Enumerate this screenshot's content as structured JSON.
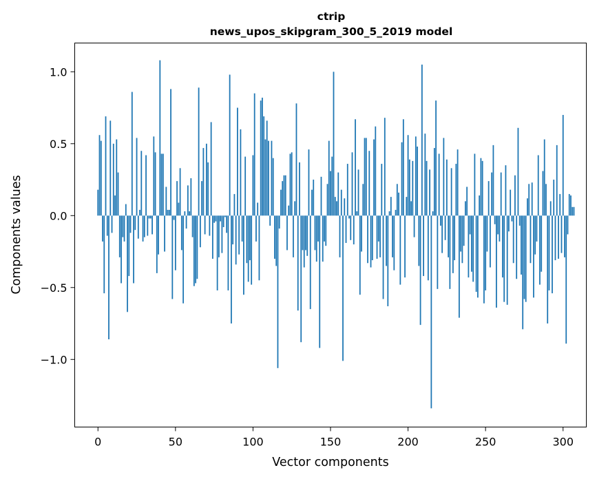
{
  "chart_data": {
    "type": "bar",
    "title": "ctrip",
    "subtitle": "news_upos_skipgram_300_5_2019 model",
    "xlabel": "Vector components",
    "ylabel": "Components values",
    "xlim": [
      -15,
      315
    ],
    "ylim": [
      -1.47,
      1.2
    ],
    "xticks": [
      0,
      50,
      100,
      150,
      200,
      250,
      300
    ],
    "xtick_labels": [
      "0",
      "50",
      "100",
      "150",
      "200",
      "250",
      "300"
    ],
    "yticks": [
      -1.0,
      -0.5,
      0.0,
      0.5,
      1.0
    ],
    "ytick_labels": [
      "−1.0",
      "−0.5",
      "0.0",
      "0.5",
      "1.0"
    ],
    "grid": false,
    "bar_color": "#1f77b4",
    "values": [
      0.18,
      0.56,
      0.52,
      -0.18,
      -0.54,
      0.69,
      -0.14,
      -0.86,
      0.66,
      -0.12,
      0.5,
      0.14,
      0.53,
      0.3,
      -0.29,
      -0.47,
      -0.15,
      -0.18,
      0.08,
      -0.67,
      -0.42,
      -0.12,
      0.86,
      -0.47,
      -0.1,
      0.54,
      -0.16,
      0.04,
      0.45,
      -0.18,
      -0.15,
      0.42,
      -0.14,
      -0.02,
      -0.02,
      -0.13,
      0.55,
      0.44,
      -0.4,
      -0.27,
      1.08,
      0.43,
      0.43,
      -0.25,
      0.2,
      0.04,
      0.04,
      0.88,
      -0.58,
      -0.03,
      -0.38,
      0.24,
      0.09,
      0.33,
      -0.24,
      -0.61,
      0.03,
      -0.09,
      0.21,
      0.03,
      0.26,
      -0.15,
      -0.49,
      -0.47,
      -0.44,
      0.89,
      -0.22,
      0.24,
      0.47,
      -0.13,
      0.5,
      0.37,
      -0.14,
      0.65,
      -0.3,
      -0.05,
      -0.04,
      -0.52,
      -0.29,
      -0.04,
      -0.26,
      -0.08,
      -0.01,
      -0.12,
      -0.52,
      0.98,
      -0.75,
      -0.2,
      0.15,
      -0.34,
      0.75,
      -0.27,
      0.6,
      -0.18,
      -0.55,
      0.41,
      -0.33,
      -0.46,
      -0.31,
      -0.48,
      0.42,
      0.85,
      -0.18,
      0.09,
      -0.45,
      0.8,
      0.82,
      0.69,
      0.53,
      0.66,
      0.52,
      -0.07,
      0.52,
      0.4,
      -0.3,
      -0.35,
      -1.06,
      -0.09,
      0.18,
      0.24,
      0.28,
      0.28,
      -0.24,
      0.07,
      0.43,
      0.44,
      -0.29,
      0.1,
      0.78,
      -0.66,
      0.37,
      -0.88,
      -0.24,
      -0.36,
      -0.24,
      -0.28,
      0.46,
      -0.65,
      0.18,
      0.25,
      -0.24,
      -0.32,
      -0.18,
      -0.92,
      0.27,
      -0.32,
      -0.18,
      -0.21,
      0.22,
      0.52,
      0.31,
      0.41,
      1.0,
      0.13,
      0.1,
      0.3,
      -0.29,
      0.18,
      -1.01,
      0.12,
      -0.19,
      0.36,
      -0.02,
      -0.17,
      0.44,
      -0.2,
      0.67,
      0.03,
      0.32,
      -0.55,
      -0.25,
      0.22,
      0.54,
      0.54,
      -0.33,
      0.45,
      -0.36,
      -0.31,
      0.53,
      0.62,
      -0.3,
      -0.18,
      -0.29,
      0.36,
      -0.58,
      0.68,
      -0.35,
      -0.63,
      0.03,
      0.13,
      -0.29,
      -0.38,
      0.04,
      0.22,
      0.16,
      -0.48,
      0.51,
      0.67,
      -0.43,
      0.13,
      0.56,
      0.39,
      0.1,
      0.38,
      -0.15,
      0.55,
      0.48,
      -0.35,
      -0.76,
      1.05,
      -0.42,
      0.57,
      0.38,
      -0.45,
      0.32,
      -1.34,
      0.03,
      0.47,
      0.8,
      -0.51,
      0.43,
      -0.07,
      -0.26,
      0.54,
      -0.17,
      0.39,
      -0.29,
      -0.51,
      0.33,
      -0.4,
      -0.31,
      0.36,
      0.46,
      -0.71,
      -0.25,
      -0.33,
      -0.21,
      0.1,
      0.2,
      -0.43,
      -0.13,
      -0.39,
      -0.46,
      0.43,
      -0.53,
      -0.57,
      0.14,
      0.4,
      0.38,
      -0.61,
      -0.52,
      -0.25,
      0.24,
      -0.36,
      0.3,
      0.49,
      -0.06,
      -0.64,
      -0.13,
      -0.18,
      0.3,
      -0.43,
      -0.6,
      0.35,
      -0.62,
      -0.11,
      0.18,
      -0.04,
      -0.33,
      0.28,
      -0.44,
      0.61,
      -0.07,
      -0.41,
      -0.79,
      -0.58,
      -0.6,
      0.12,
      0.22,
      -0.33,
      0.23,
      -0.57,
      -0.27,
      -0.18,
      0.42,
      -0.48,
      -0.39,
      0.31,
      0.53,
      0.22,
      -0.75,
      -0.52,
      0.1,
      -0.54,
      0.25,
      -0.31,
      0.49,
      -0.3,
      0.15,
      -0.26,
      0.7,
      -0.29,
      -0.89,
      -0.13,
      0.15,
      0.14,
      0.06,
      0.06
    ]
  }
}
